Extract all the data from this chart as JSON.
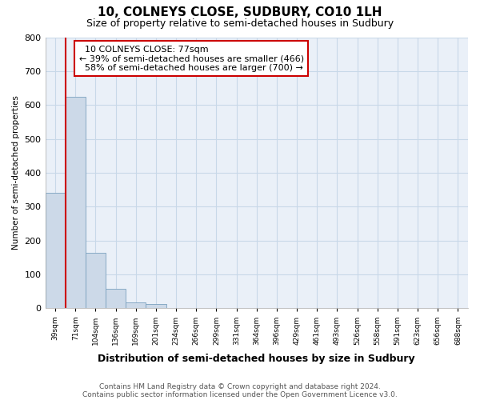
{
  "title": "10, COLNEYS CLOSE, SUDBURY, CO10 1LH",
  "subtitle": "Size of property relative to semi-detached houses in Sudbury",
  "xlabel": "Distribution of semi-detached houses by size in Sudbury",
  "ylabel": "Number of semi-detached properties",
  "footnote1": "Contains HM Land Registry data © Crown copyright and database right 2024.",
  "footnote2": "Contains public sector information licensed under the Open Government Licence v3.0.",
  "bin_labels": [
    "39sqm",
    "71sqm",
    "104sqm",
    "136sqm",
    "169sqm",
    "201sqm",
    "234sqm",
    "266sqm",
    "299sqm",
    "331sqm",
    "364sqm",
    "396sqm",
    "429sqm",
    "461sqm",
    "493sqm",
    "526sqm",
    "558sqm",
    "591sqm",
    "623sqm",
    "656sqm",
    "688sqm"
  ],
  "bar_heights": [
    342,
    625,
    163,
    58,
    18,
    12,
    0,
    0,
    0,
    0,
    0,
    0,
    0,
    0,
    0,
    0,
    0,
    0,
    0,
    0,
    0
  ],
  "bar_color": "#ccd9e8",
  "bar_edge_color": "#7aa0be",
  "property_label": "10 COLNEYS CLOSE: 77sqm",
  "pct_smaller": "39% of semi-detached houses are smaller (466)",
  "pct_larger": "58% of semi-detached houses are larger (700)",
  "annotation_box_color": "#ffffff",
  "annotation_box_edge": "#cc0000",
  "vline_color": "#cc0000",
  "ylim": [
    0,
    800
  ],
  "yticks": [
    0,
    100,
    200,
    300,
    400,
    500,
    600,
    700,
    800
  ],
  "grid_color": "#c8d8e8",
  "background_color": "#ffffff",
  "plot_bg_color": "#eaf0f8"
}
